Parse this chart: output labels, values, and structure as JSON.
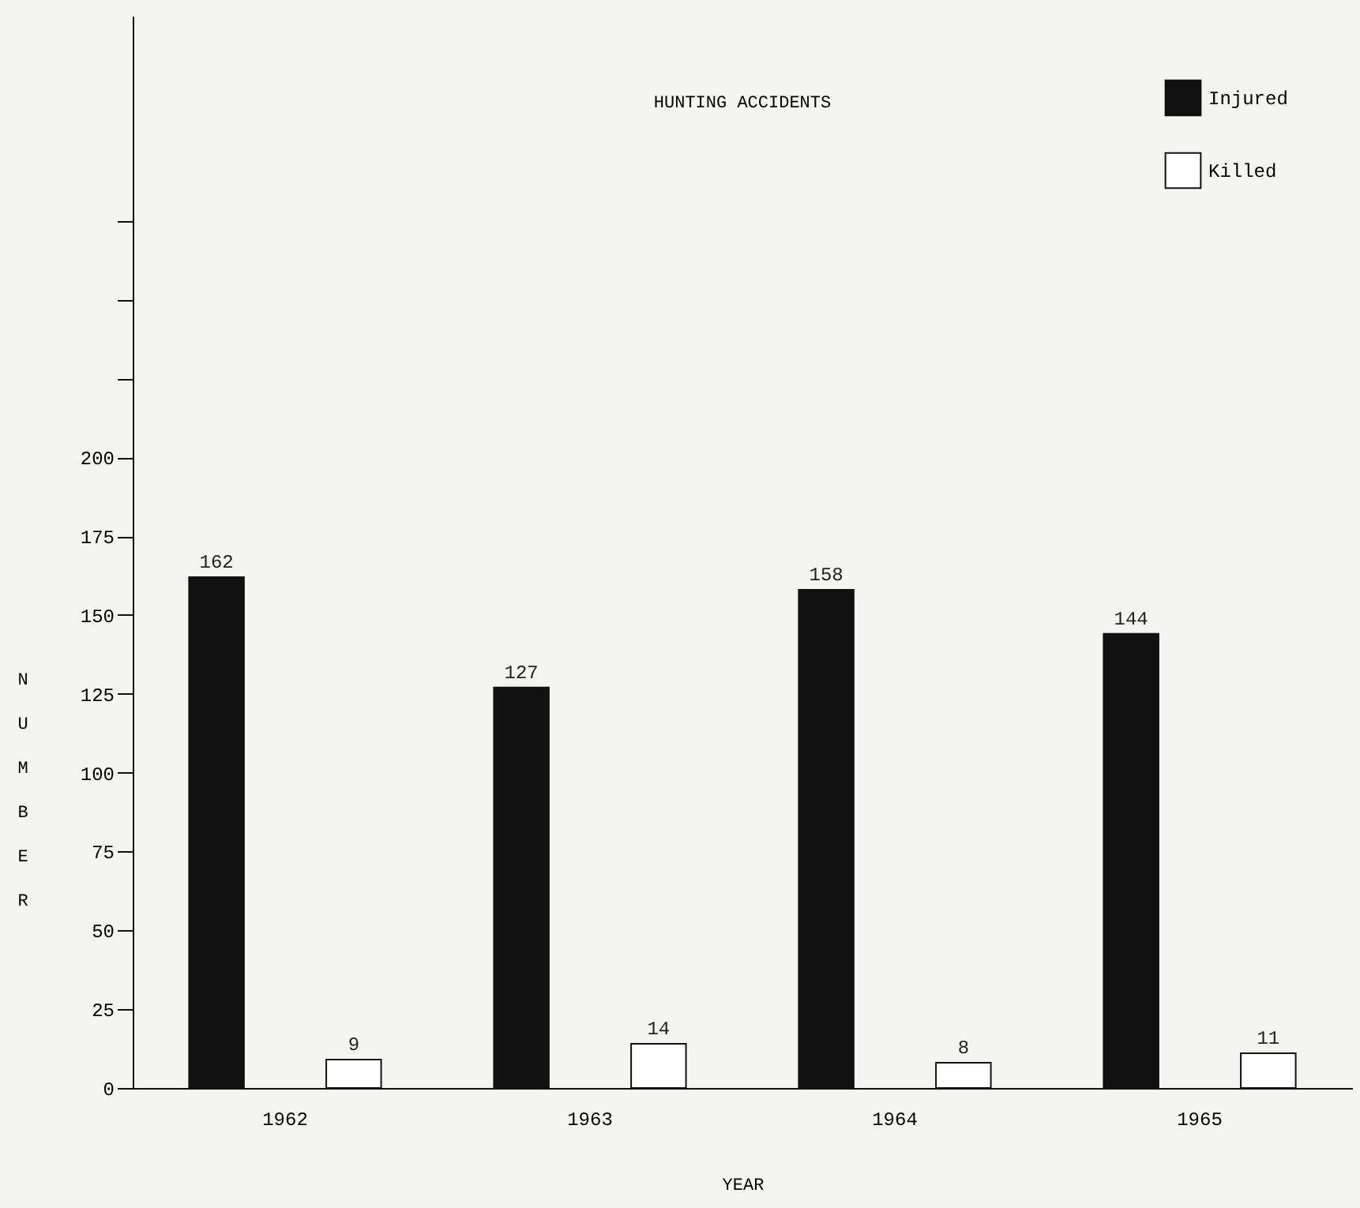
{
  "chart_data": {
    "type": "bar",
    "title": "HUNTING ACCIDENTS",
    "xlabel": "YEAR",
    "ylabel": "NUMBER",
    "categories": [
      "1962",
      "1963",
      "1964",
      "1965"
    ],
    "series": [
      {
        "name": "Injured",
        "color": "#111111",
        "values": [
          162,
          127,
          158,
          144
        ]
      },
      {
        "name": "Killed",
        "color": "#ffffff",
        "values": [
          9,
          14,
          8,
          11
        ]
      }
    ],
    "ylim": [
      0,
      340
    ],
    "yticks": [
      0,
      25,
      50,
      75,
      100,
      125,
      150,
      175,
      200,
      {
        "value": 225,
        "label": null
      },
      {
        "value": 250,
        "label": null
      },
      {
        "value": 275,
        "label": null
      }
    ],
    "data_labels": true,
    "legend": "top right",
    "grid": false
  }
}
